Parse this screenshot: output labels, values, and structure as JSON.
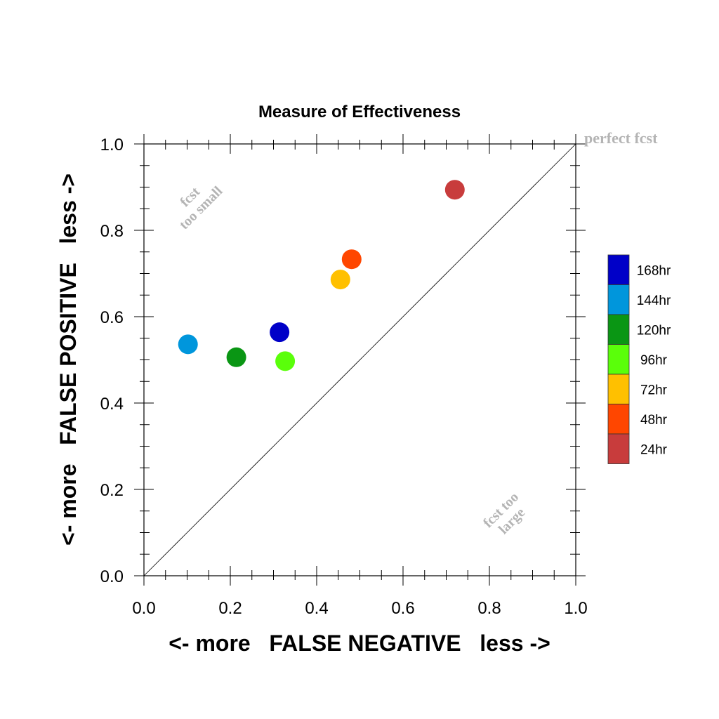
{
  "chart_data": {
    "type": "scatter",
    "title": "Measure of Effectiveness",
    "xlabel": "<- more   FALSE NEGATIVE   less ->",
    "ylabel": "<- more   FALSE POSITIVE   less ->",
    "xlim": [
      0.0,
      1.0
    ],
    "ylim": [
      0.0,
      1.0
    ],
    "xticks": [
      0.0,
      0.2,
      0.4,
      0.6,
      0.8,
      1.0
    ],
    "yticks": [
      0.0,
      0.2,
      0.4,
      0.6,
      0.8,
      1.0
    ],
    "xtick_labels": [
      "0.0",
      "0.2",
      "0.4",
      "0.6",
      "0.8",
      "1.0"
    ],
    "ytick_labels": [
      "0.0",
      "0.2",
      "0.4",
      "0.6",
      "0.8",
      "1.0"
    ],
    "grid": false,
    "diagonal_line": true,
    "legend_position": "right",
    "annotations": {
      "perfect": "perfect fcst",
      "small_line1": "fcst",
      "small_line2": "too small",
      "large_line1": "fcst too",
      "large_line2": "large"
    },
    "series": [
      {
        "name": "168hr",
        "color": "#0000c8",
        "x": 0.314,
        "y": 0.564
      },
      {
        "name": "144hr",
        "color": "#0096dc",
        "x": 0.102,
        "y": 0.536
      },
      {
        "name": "120hr",
        "color": "#0a9614",
        "x": 0.214,
        "y": 0.506
      },
      {
        "name": "96hr",
        "color": "#5aff0a",
        "x": 0.327,
        "y": 0.497
      },
      {
        "name": "72hr",
        "color": "#ffc000",
        "x": 0.455,
        "y": 0.686
      },
      {
        "name": "48hr",
        "color": "#ff4600",
        "x": 0.481,
        "y": 0.733
      },
      {
        "name": "24hr",
        "color": "#c83c3c",
        "x": 0.72,
        "y": 0.894
      }
    ]
  }
}
